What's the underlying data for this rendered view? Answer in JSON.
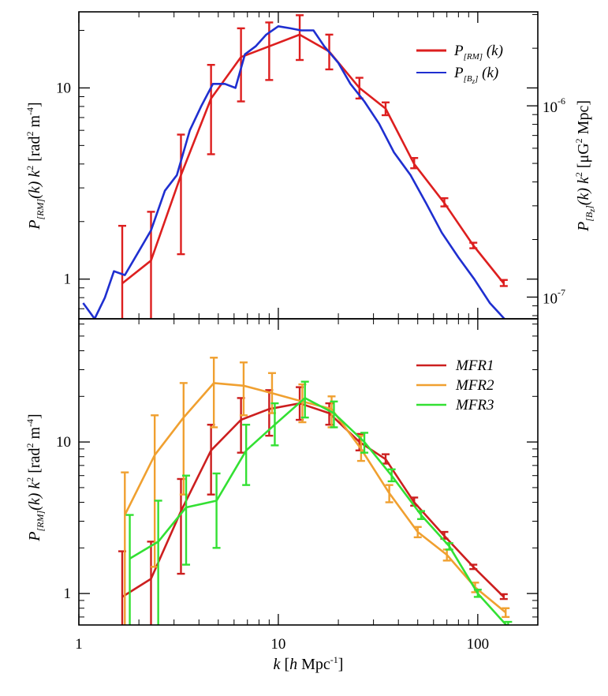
{
  "chart_data": [
    {
      "type": "line",
      "panel": "top",
      "xscale": "log",
      "yscale": "log",
      "xlim": [
        1,
        200
      ],
      "ylim": [
        0.62,
        25
      ],
      "y2lim": [
        7.7e-08,
        3.1e-06
      ],
      "xticks": [
        1,
        10,
        100
      ],
      "xtick_labels": [
        "1",
        "10",
        "100"
      ],
      "yticks": [
        1,
        10
      ],
      "ytick_labels": [
        "1",
        "10"
      ],
      "y2ticks": [
        1e-07,
        1e-06
      ],
      "y2tick_labels": [
        {
          "mant": "10",
          "exp": "-7"
        },
        {
          "mant": "10",
          "exp": "-6"
        }
      ],
      "ylabel": {
        "p": "P",
        "sub": "[RM]",
        "rest": "(k) k",
        "sup": "2",
        "units": "[rad",
        "units_sup": "2",
        "units_rest": " m",
        "units_sup2": "-4",
        "units_end": "]"
      },
      "y2label": {
        "p": "P",
        "sub": "[B",
        "sub2": "z",
        "sub3": "]",
        "rest": "(k) k",
        "sup": "2",
        "units": "[μG",
        "units_sup": "2",
        "units_rest": " Mpc]"
      },
      "legend": {
        "position": "top-right",
        "entries": [
          {
            "p": "P",
            "sub": "[RM]",
            "arg": " (k)",
            "color": "#dd1f1f"
          },
          {
            "p": "P",
            "sub": "[B",
            "sub2": "z",
            "sub3": "]",
            "arg": " (k)",
            "color": "#1f2fd0"
          }
        ]
      },
      "series": [
        {
          "name": "P_[RM](k)",
          "color": "#dd1f1f",
          "x": [
            1.65,
            2.3,
            3.25,
            4.6,
            6.5,
            9.0,
            12.8,
            18.0,
            25.5,
            34.5,
            48.0,
            68.0,
            95.0,
            135.0
          ],
          "y": [
            0.95,
            1.25,
            3.5,
            8.8,
            14.5,
            16.5,
            19.0,
            15.5,
            10.0,
            7.8,
            4.0,
            2.5,
            1.5,
            0.95
          ],
          "err_lo": [
            0.5,
            0.55,
            1.35,
            4.5,
            8.5,
            11.0,
            14.0,
            12.5,
            8.8,
            7.2,
            3.8,
            2.4,
            1.45,
            0.92
          ],
          "err_hi": [
            1.9,
            2.25,
            5.7,
            13.2,
            20.5,
            22.0,
            24.0,
            19.0,
            11.3,
            8.4,
            4.3,
            2.65,
            1.55,
            0.99
          ]
        },
        {
          "name": "P_[Bz](k)",
          "color": "#1f2fd0",
          "x": [
            1.05,
            1.2,
            1.35,
            1.5,
            1.7,
            2.0,
            2.3,
            2.7,
            3.1,
            3.6,
            4.1,
            4.7,
            5.4,
            6.1,
            6.8,
            7.7,
            8.7,
            10.0,
            11.5,
            13.0,
            15.0,
            17.0,
            20.0,
            23.0,
            27.0,
            32.0,
            38.0,
            46.0,
            55.0,
            66.0,
            80.0,
            96.0,
            115.0,
            140.0
          ],
          "y": [
            0.75,
            0.62,
            0.8,
            1.1,
            1.05,
            1.4,
            1.8,
            2.9,
            3.5,
            6.0,
            8.0,
            10.5,
            10.5,
            10.0,
            15.0,
            16.5,
            19.0,
            21.0,
            20.5,
            20.0,
            20.0,
            16.5,
            13.5,
            10.5,
            8.5,
            6.5,
            4.6,
            3.5,
            2.5,
            1.75,
            1.3,
            1.0,
            0.75,
            0.6
          ]
        }
      ]
    },
    {
      "type": "line",
      "panel": "bottom",
      "xscale": "log",
      "yscale": "log",
      "xlim": [
        1,
        200
      ],
      "ylim": [
        0.62,
        65
      ],
      "xticks": [
        1,
        10,
        100
      ],
      "xtick_labels": [
        "1",
        "10",
        "100"
      ],
      "yticks": [
        1,
        10
      ],
      "ytick_labels": [
        "1",
        "10"
      ],
      "xlabel": {
        "k": "k",
        "open": " [",
        "h": "h",
        "rest": " Mpc",
        "sup": "-1",
        "close": "]"
      },
      "ylabel": {
        "p": "P",
        "sub": "[RM]",
        "rest": "(k) k",
        "sup": "2",
        "units": "[rad",
        "units_sup": "2",
        "units_rest": " m",
        "units_sup2": "-4",
        "units_end": "]"
      },
      "legend": {
        "position": "top-right",
        "entries": [
          {
            "label": "MFR1",
            "color": "#cc1f1f"
          },
          {
            "label": "MFR2",
            "color": "#f0a030"
          },
          {
            "label": "MFR3",
            "color": "#33e033"
          }
        ]
      },
      "series": [
        {
          "name": "MFR1",
          "color": "#cc1f1f",
          "x": [
            1.65,
            2.3,
            3.25,
            4.6,
            6.5,
            9.0,
            12.8,
            18.0,
            25.5,
            34.5,
            48.0,
            68.0,
            95.0,
            135.0
          ],
          "y": [
            0.95,
            1.25,
            3.5,
            8.8,
            14.0,
            16.5,
            18.0,
            15.5,
            10.0,
            7.7,
            4.0,
            2.4,
            1.5,
            0.95
          ],
          "err_lo": [
            0.5,
            0.55,
            1.35,
            4.5,
            8.5,
            11.0,
            14.0,
            13.0,
            8.8,
            7.2,
            3.8,
            2.3,
            1.45,
            0.92
          ],
          "err_hi": [
            1.9,
            2.2,
            5.7,
            13.0,
            19.5,
            22.0,
            23.0,
            18.0,
            11.3,
            8.3,
            4.3,
            2.55,
            1.55,
            0.99
          ]
        },
        {
          "name": "MFR2",
          "color": "#f0a030",
          "x": [
            1.7,
            2.4,
            3.35,
            4.75,
            6.7,
            9.3,
            13.2,
            18.5,
            26.0,
            36.0,
            50.0,
            70.0,
            97.0,
            138.0
          ],
          "y": [
            3.3,
            8.2,
            14.5,
            24.5,
            23.5,
            21.0,
            18.5,
            16.5,
            9.0,
            4.6,
            2.55,
            1.8,
            1.1,
            0.75
          ],
          "err_lo": [
            0.5,
            1.5,
            4.5,
            12.5,
            15.0,
            15.5,
            13.5,
            12.5,
            7.5,
            4.0,
            2.35,
            1.65,
            1.02,
            0.7
          ],
          "err_hi": [
            6.3,
            15.0,
            24.5,
            36.0,
            33.5,
            28.5,
            24.0,
            20.0,
            11.0,
            5.2,
            2.75,
            1.95,
            1.18,
            0.8
          ]
        },
        {
          "name": "MFR3",
          "color": "#33e033",
          "x": [
            1.8,
            2.5,
            3.45,
            4.9,
            6.9,
            9.6,
            13.6,
            19.0,
            27.0,
            37.0,
            52.0,
            72.0,
            100.0,
            142.0
          ],
          "y": [
            1.7,
            2.2,
            3.7,
            4.1,
            8.8,
            13.0,
            19.5,
            15.5,
            10.0,
            6.0,
            3.3,
            2.05,
            1.0,
            0.6
          ],
          "err_lo": [
            0.5,
            0.55,
            1.55,
            2.0,
            5.2,
            9.5,
            14.5,
            12.5,
            8.5,
            5.5,
            3.1,
            1.95,
            0.95,
            0.55
          ],
          "err_hi": [
            3.3,
            4.1,
            6.0,
            6.2,
            13.0,
            18.0,
            25.0,
            18.5,
            11.5,
            6.6,
            3.5,
            2.15,
            1.06,
            0.65
          ]
        }
      ]
    }
  ]
}
